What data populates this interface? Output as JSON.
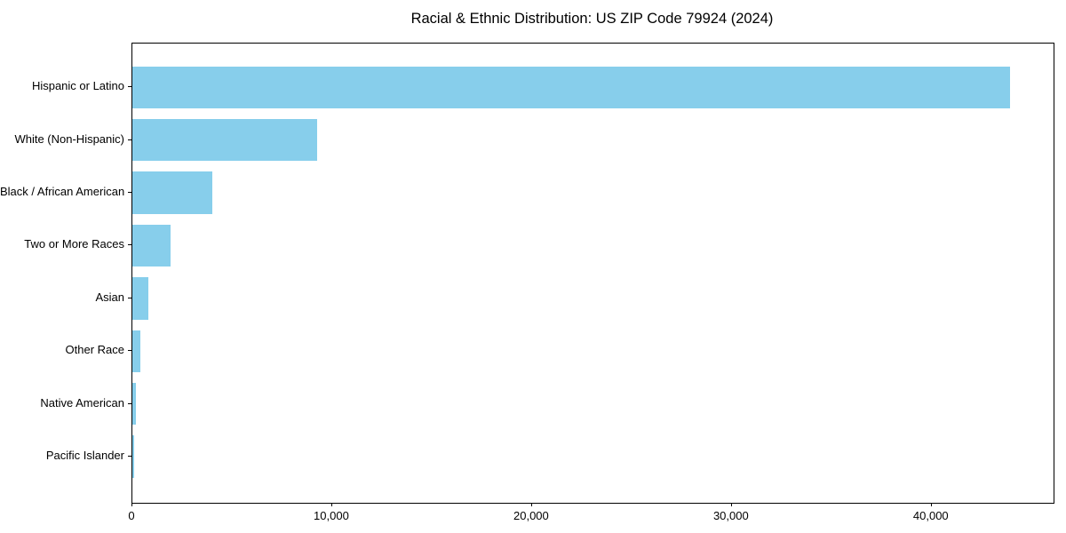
{
  "figure": {
    "title": "Racial & Ethnic Distribution: US ZIP Code 79924 (2024)"
  },
  "chart_data": {
    "type": "bar",
    "orientation": "horizontal",
    "title": "Racial & Ethnic Distribution: US ZIP Code 79924 (2024)",
    "categories": [
      "Hispanic or Latino",
      "White (Non-Hispanic)",
      "Black / African American",
      "Two or More Races",
      "Asian",
      "Other Race",
      "Native American",
      "Pacific Islander"
    ],
    "values": [
      43900,
      9250,
      4000,
      1890,
      820,
      380,
      200,
      110
    ],
    "bar_color": "#87CEEB",
    "text_color": "#000000",
    "axis_color": "#000000",
    "xlabel": "",
    "ylabel": "",
    "xlim": [
      0,
      46100
    ],
    "x_ticks": [
      0,
      10000,
      20000,
      30000,
      40000
    ],
    "x_tick_labels": [
      "0",
      "10,000",
      "20,000",
      "30,000",
      "40,000"
    ],
    "grid": false,
    "legend_position": "none"
  }
}
